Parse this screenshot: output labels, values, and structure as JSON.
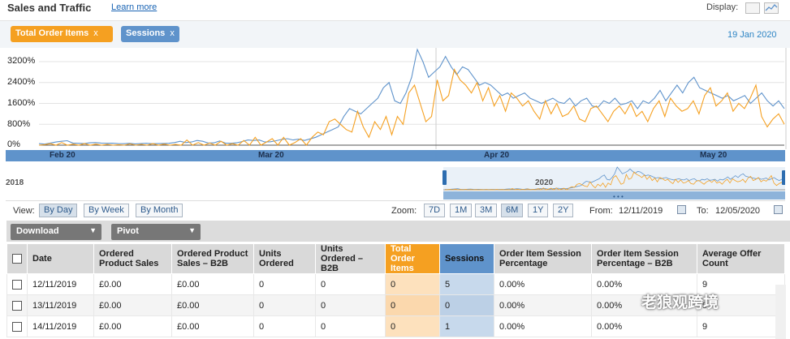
{
  "header": {
    "title": "Sales and Traffic",
    "learn_more": "Learn more",
    "display_label": "Display:",
    "icons": [
      "table-view-icon",
      "chart-view-icon"
    ]
  },
  "chips": [
    {
      "label": "Total Order Items",
      "remove": "x",
      "color": "#f5a021"
    },
    {
      "label": "Sessions",
      "remove": "x",
      "color": "#5f93cb"
    }
  ],
  "date_label": "19 Jan 2020",
  "chart_data": {
    "type": "line",
    "y_ticks": [
      "3200%",
      "2400%",
      "1600%",
      "800%",
      "0%"
    ],
    "ylim": [
      0,
      3400
    ],
    "x_ticks": [
      "Feb 20",
      "Mar 20",
      "Apr 20",
      "May 20"
    ],
    "series": [
      {
        "name": "Sessions",
        "color": "#5f93cb",
        "values": [
          60,
          40,
          80,
          120,
          150,
          170,
          80,
          70,
          60,
          90,
          100,
          80,
          70,
          75,
          60,
          55,
          70,
          50,
          60,
          70,
          55,
          60,
          65,
          70,
          100,
          150,
          100,
          120,
          180,
          150,
          80,
          90,
          160,
          80,
          70,
          90,
          140,
          200,
          180,
          200,
          120,
          130,
          170,
          220,
          250,
          200,
          230,
          180,
          240,
          300,
          400,
          500,
          600,
          700,
          1100,
          1400,
          1300,
          1200,
          1400,
          1600,
          1800,
          2200,
          2400,
          1700,
          1600,
          2000,
          2600,
          3700,
          3200,
          2600,
          2800,
          3000,
          3400,
          3000,
          2700,
          3000,
          2900,
          2600,
          2300,
          2400,
          2300,
          2100,
          1900,
          2000,
          1800,
          1900,
          2000,
          1800,
          1700,
          1600,
          1700,
          1800,
          1650,
          1600,
          1800,
          1500,
          1700,
          1800,
          1500,
          1450,
          1700,
          1600,
          1800,
          1550,
          1600,
          1700,
          1400,
          1700,
          1600,
          1800,
          2100,
          1700,
          2000,
          2300,
          2000,
          2400,
          2600,
          2200,
          2100,
          2000,
          1900,
          1800,
          1900,
          1700,
          1800,
          1900,
          1600,
          1800,
          2000,
          1700,
          1500,
          1700,
          1400
        ]
      },
      {
        "name": "Total Order Items",
        "color": "#f5a021",
        "values": [
          0,
          20,
          60,
          0,
          100,
          0,
          40,
          0,
          60,
          0,
          40,
          0,
          30,
          0,
          20,
          0,
          50,
          0,
          30,
          0,
          60,
          0,
          40,
          0,
          30,
          0,
          200,
          0,
          100,
          0,
          80,
          0,
          150,
          0,
          60,
          0,
          180,
          0,
          300,
          0,
          120,
          250,
          0,
          300,
          0,
          100,
          250,
          0,
          300,
          500,
          400,
          900,
          1000,
          800,
          600,
          500,
          1300,
          700,
          300,
          900,
          600,
          1100,
          400,
          1100,
          800,
          2000,
          2300,
          1600,
          900,
          1100,
          2500,
          1700,
          1900,
          2900,
          2500,
          2300,
          2000,
          2400,
          1700,
          2200,
          1500,
          1900,
          1300,
          2000,
          1800,
          1500,
          1700,
          1300,
          1000,
          1700,
          1200,
          1600,
          1100,
          1200,
          1500,
          1000,
          900,
          1400,
          1500,
          1200,
          900,
          1300,
          1500,
          1200,
          1600,
          1100,
          1300,
          900,
          1400,
          1700,
          1100,
          1800,
          1500,
          1300,
          1400,
          1700,
          1200,
          1900,
          2200,
          1500,
          1700,
          2000,
          1300,
          1600,
          1400,
          1800,
          2300,
          1100,
          700,
          1000,
          1200,
          800
        ]
      }
    ]
  },
  "navigator": {
    "left_label": "2018",
    "mid_label": "2020"
  },
  "controls": {
    "view_label": "View:",
    "views": [
      "By Day",
      "By Week",
      "By Month"
    ],
    "zoom_label": "Zoom:",
    "zooms": [
      "7D",
      "1M",
      "3M",
      "6M",
      "1Y",
      "2Y"
    ],
    "from_label": "From:",
    "from_value": "12/11/2019",
    "to_label": "To:",
    "to_value": "12/05/2020"
  },
  "toolbar": {
    "download": "Download",
    "pivot": "Pivot"
  },
  "table": {
    "headers": [
      "Date",
      "Ordered Product Sales",
      "Ordered Product Sales – B2B",
      "Units Ordered",
      "Units Ordered – B2B",
      "Total Order Items",
      "Sessions",
      "Order Item Session Percentage",
      "Order Item Session Percentage – B2B",
      "Average Offer Count"
    ],
    "rows": [
      [
        "12/11/2019",
        "£0.00",
        "£0.00",
        "0",
        "0",
        "0",
        "5",
        "0.00%",
        "0.00%",
        "9"
      ],
      [
        "13/11/2019",
        "£0.00",
        "£0.00",
        "0",
        "0",
        "0",
        "0",
        "0.00%",
        "0.00%",
        "9"
      ],
      [
        "14/11/2019",
        "£0.00",
        "£0.00",
        "0",
        "0",
        "0",
        "1",
        "0.00%",
        "0.00%",
        "9"
      ]
    ]
  },
  "watermark": "老狼观跨境"
}
